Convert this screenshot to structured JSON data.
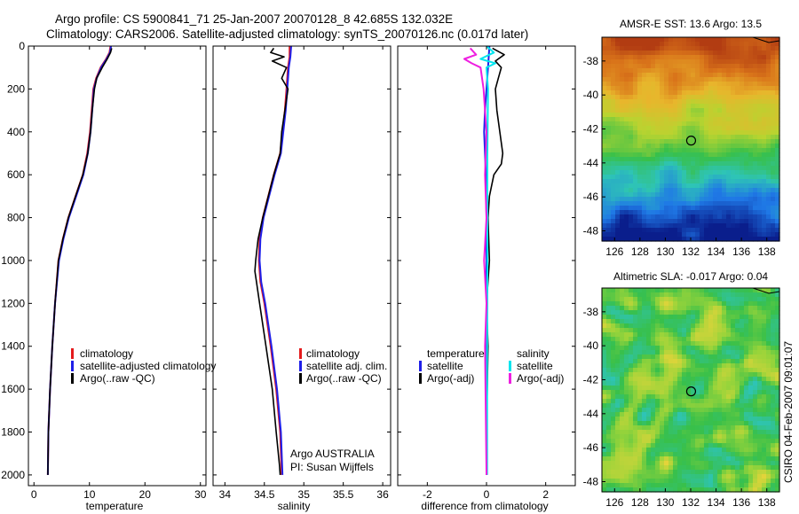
{
  "figure": {
    "title_line1": "Argo profile: CS 5900841_71 25-Jan-2007 20070128_8 42.685S 132.032E",
    "title_line2": "Climatology: CARS2006. Satellite-adjusted climatology: synTS_20070126.nc (0.017d later)",
    "side_label": "CSIRO 04-Feb-2007 09:01:07",
    "argo_info_line1": "Argo AUSTRALIA",
    "argo_info_line2": "PI: Susan Wijffels"
  },
  "colors": {
    "climatology": "#e41a1c",
    "satellite": "#1f1fe8",
    "argo": "#000000",
    "sat_salinity": "#00e5ee",
    "argo_adj_salinity": "#ee1fe0"
  },
  "chart_data": [
    {
      "type": "line",
      "id": "temperature",
      "xlabel": "temperature",
      "ylabel": "",
      "xlim": [
        -1,
        31
      ],
      "ylim": [
        2050,
        0
      ],
      "xticks": [
        0,
        10,
        20,
        30
      ],
      "yticks": [
        0,
        200,
        400,
        600,
        800,
        1000,
        1200,
        1400,
        1600,
        1800,
        2000
      ],
      "legend": {
        "placement": "lower-left",
        "entries": [
          "climatology",
          "satellite-adjusted climatology",
          "Argo(..raw -QC)"
        ]
      },
      "series": [
        {
          "name": "climatology",
          "x": [
            13.8,
            13.6,
            13.0,
            12.0,
            11.2,
            10.7,
            10.4,
            10.1,
            9.6,
            8.8,
            7.5,
            6.2,
            5.2,
            4.4,
            3.8,
            3.3,
            2.9,
            2.6,
            2.5
          ],
          "y": [
            0,
            30,
            60,
            100,
            150,
            200,
            300,
            400,
            500,
            600,
            700,
            800,
            900,
            1000,
            1200,
            1400,
            1600,
            1800,
            2000
          ]
        },
        {
          "name": "satellite-adjusted climatology",
          "x": [
            13.9,
            13.7,
            13.1,
            12.1,
            11.3,
            10.8,
            10.5,
            10.2,
            9.7,
            8.9,
            7.6,
            6.3,
            5.3,
            4.5,
            3.8,
            3.3,
            2.9,
            2.6,
            2.5
          ],
          "y": [
            0,
            30,
            60,
            100,
            150,
            200,
            300,
            400,
            500,
            600,
            700,
            800,
            900,
            1000,
            1200,
            1400,
            1600,
            1800,
            2000
          ]
        },
        {
          "name": "Argo(..raw -QC)",
          "x": [
            14.0,
            13.8,
            13.2,
            12.3,
            11.3,
            10.9,
            10.5,
            10.2,
            9.7,
            8.8,
            7.5,
            6.2,
            5.2,
            4.4,
            3.8,
            3.3,
            2.9,
            2.6,
            2.5
          ],
          "y": [
            10,
            30,
            60,
            100,
            150,
            200,
            300,
            400,
            500,
            600,
            700,
            800,
            900,
            1000,
            1200,
            1400,
            1600,
            1800,
            2000
          ]
        }
      ]
    },
    {
      "type": "line",
      "id": "salinity",
      "xlabel": "salinity",
      "ylabel": "",
      "xlim": [
        33.85,
        36.1
      ],
      "ylim": [
        2050,
        0
      ],
      "xticks": [
        34,
        34.5,
        35,
        35.5,
        36
      ],
      "yticks": [
        0,
        200,
        400,
        600,
        800,
        1000,
        1200,
        1400,
        1600,
        1800,
        2000
      ],
      "legend": {
        "placement": "lower-right",
        "entries": [
          "climatology",
          "satellite adj. clim.",
          "Argo(..raw -QC)"
        ]
      },
      "series": [
        {
          "name": "climatology",
          "x": [
            34.82,
            34.82,
            34.8,
            34.78,
            34.76,
            34.73,
            34.7,
            34.62,
            34.55,
            34.48,
            34.44,
            34.43,
            34.45,
            34.5,
            34.58,
            34.65,
            34.7,
            34.72
          ],
          "y": [
            0,
            50,
            100,
            200,
            300,
            400,
            500,
            600,
            700,
            800,
            900,
            1000,
            1100,
            1200,
            1400,
            1600,
            1800,
            2000
          ]
        },
        {
          "name": "satellite adj. clim.",
          "x": [
            34.84,
            34.83,
            34.81,
            34.79,
            34.77,
            34.74,
            34.71,
            34.63,
            34.56,
            34.49,
            34.45,
            34.44,
            34.46,
            34.51,
            34.59,
            34.66,
            34.71,
            34.73
          ],
          "y": [
            0,
            50,
            100,
            200,
            300,
            400,
            500,
            600,
            700,
            800,
            900,
            1000,
            1100,
            1200,
            1400,
            1600,
            1800,
            2000
          ]
        },
        {
          "name": "Argo(..raw -QC)",
          "x": [
            34.62,
            34.58,
            34.75,
            34.6,
            34.78,
            34.72,
            34.8,
            34.76,
            34.72,
            34.7,
            34.62,
            34.55,
            34.48,
            34.42,
            34.39,
            34.38,
            34.4,
            34.44,
            34.52,
            34.6,
            34.65,
            34.69,
            34.7
          ],
          "y": [
            10,
            30,
            50,
            70,
            100,
            150,
            200,
            300,
            400,
            500,
            600,
            700,
            800,
            900,
            1000,
            1050,
            1100,
            1200,
            1400,
            1600,
            1800,
            1950,
            2000
          ]
        }
      ]
    },
    {
      "type": "line",
      "id": "difference",
      "xlabel": "difference from climatology",
      "ylabel": "",
      "xlim": [
        -3,
        3
      ],
      "ylim": [
        2050,
        0
      ],
      "xticks": [
        -2,
        0,
        2
      ],
      "yticks": [
        0,
        200,
        400,
        600,
        800,
        1000,
        1200,
        1400,
        1600,
        1800,
        2000
      ],
      "legend": {
        "placement": "lower-center",
        "entries": [
          "temperature",
          "satellite",
          "Argo(-adj)",
          "salinity",
          "satellite",
          "Argo(-adj)"
        ]
      },
      "series": [
        {
          "name": "temperature satellite",
          "x": [
            0.1,
            0.05,
            0.0,
            -0.05,
            -0.08,
            -0.05,
            -0.02,
            0.0,
            0.0,
            0.0,
            0.0,
            0.0
          ],
          "y": [
            0,
            100,
            200,
            300,
            400,
            500,
            600,
            800,
            1000,
            1400,
            1800,
            2000
          ]
        },
        {
          "name": "temperature Argo(-adj)",
          "x": [
            0.2,
            0.6,
            0.3,
            0.5,
            0.4,
            0.3,
            0.35,
            0.45,
            0.55,
            0.5,
            0.25,
            0.1,
            0.05,
            0.1,
            0.0,
            0.05,
            0.0,
            0.0
          ],
          "y": [
            10,
            40,
            70,
            100,
            150,
            200,
            300,
            400,
            500,
            550,
            600,
            700,
            800,
            1000,
            1200,
            1400,
            1800,
            2000
          ]
        },
        {
          "name": "salinity satellite",
          "x": [
            0.0,
            0.25,
            -0.2,
            0.3,
            0.0,
            0.05,
            0.03,
            0.03,
            0.02,
            0.02,
            0.02
          ],
          "y": [
            0,
            30,
            60,
            80,
            100,
            200,
            500,
            1000,
            1500,
            1800,
            2000
          ]
        },
        {
          "name": "salinity Argo(-adj)",
          "x": [
            -0.55,
            -0.35,
            -0.75,
            -0.5,
            -0.2,
            -0.15,
            -0.1,
            -0.05,
            0.0,
            -0.05,
            0.0,
            -0.08,
            0.0,
            -0.05,
            0.0
          ],
          "y": [
            10,
            40,
            60,
            80,
            100,
            150,
            200,
            300,
            400,
            600,
            800,
            1000,
            1200,
            1400,
            2000
          ]
        }
      ]
    },
    {
      "type": "heatmap",
      "id": "amsr-sst",
      "title": "AMSR-E SST: 13.6 Argo: 13.5",
      "xlim": [
        125,
        139
      ],
      "ylim": [
        -48.6,
        -36.6
      ],
      "xticks": [
        126,
        128,
        130,
        132,
        134,
        136,
        138
      ],
      "yticks": [
        -38,
        -40,
        -42,
        -44,
        -46,
        -48
      ],
      "marker": {
        "lon": 132.032,
        "lat": -42.685
      },
      "colorscale": [
        "#0a1e8c",
        "#1f78e6",
        "#2ec4b6",
        "#38c04a",
        "#b8d430",
        "#e8b62c",
        "#d9741a",
        "#b23c12"
      ]
    },
    {
      "type": "heatmap",
      "id": "altimetric-sla",
      "title": "Altimetric SLA: -0.017 Argo: 0.04",
      "xlim": [
        125,
        139
      ],
      "ylim": [
        -48.6,
        -36.6
      ],
      "xticks": [
        126,
        128,
        130,
        132,
        134,
        136,
        138
      ],
      "yticks": [
        -38,
        -40,
        -42,
        -44,
        -46,
        -48
      ],
      "marker": {
        "lon": 132.032,
        "lat": -42.685
      },
      "colorscale": [
        "#2ec4b6",
        "#38c04a",
        "#9ad43a",
        "#e8d43a",
        "#e8b62c"
      ]
    }
  ]
}
